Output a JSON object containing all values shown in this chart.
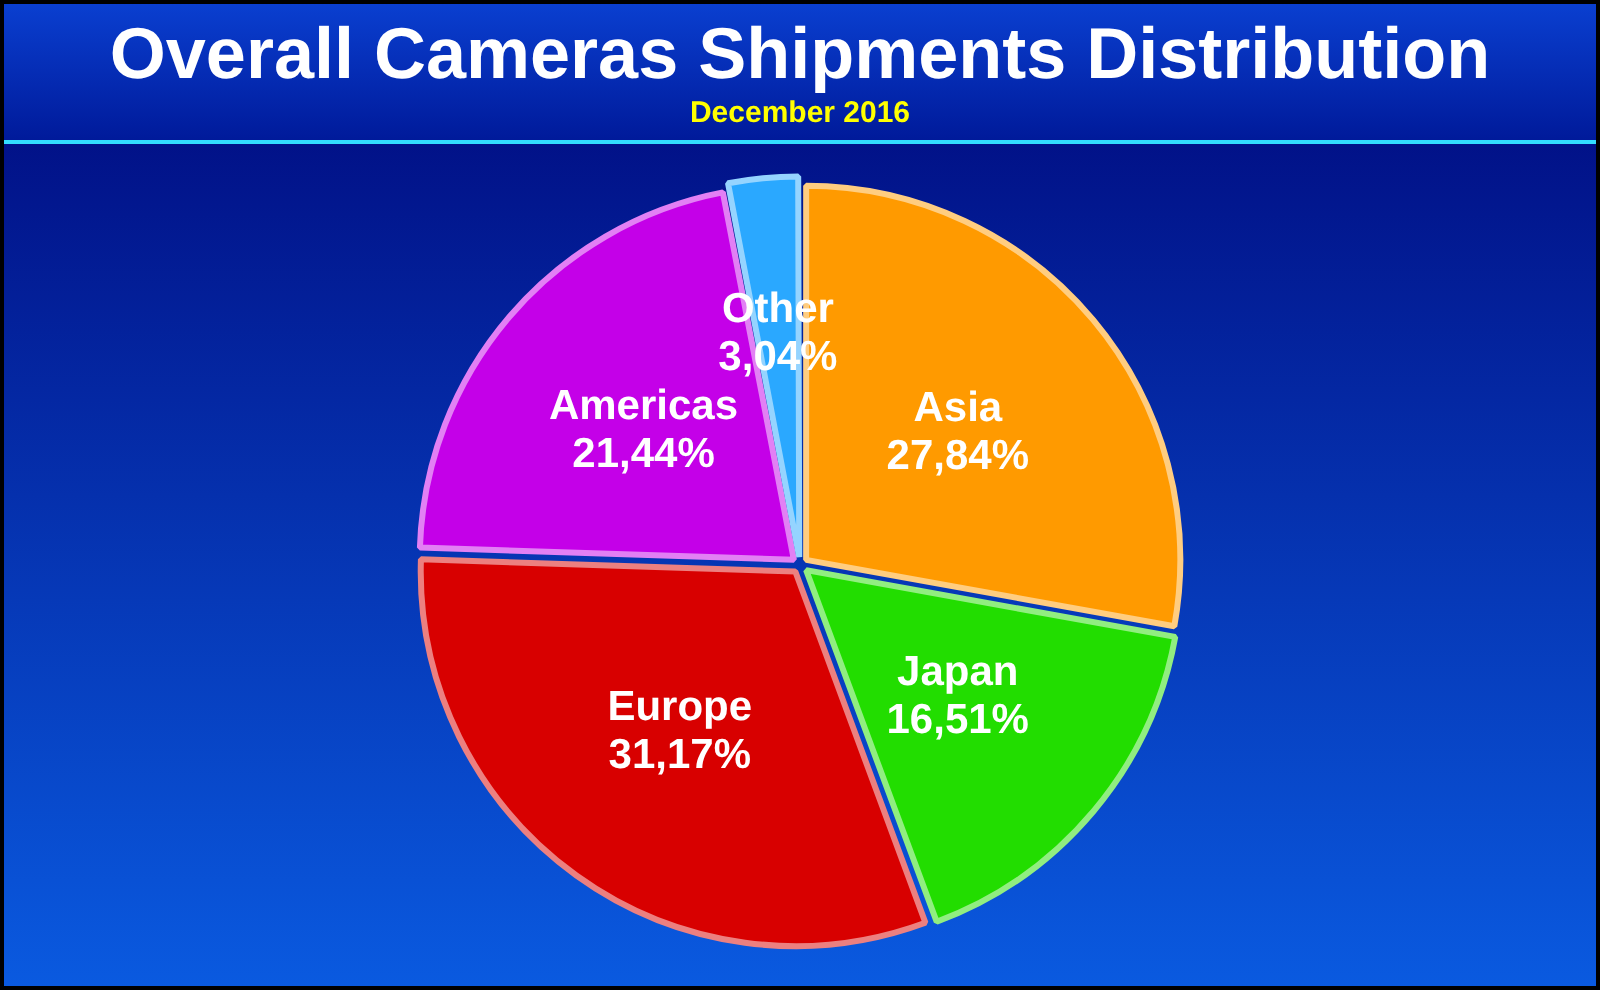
{
  "chart_data": {
    "type": "pie",
    "title": "Overall Cameras Shipments Distribution",
    "subtitle": "December 2016",
    "categories": [
      "Asia",
      "Japan",
      "Europe",
      "Americas",
      "Other"
    ],
    "values": [
      27.84,
      16.51,
      31.17,
      21.44,
      3.04
    ],
    "value_labels": [
      "27,84%",
      "16,51%",
      "31,17%",
      "21,44%",
      "3,04%"
    ],
    "colors": [
      "#ff9a00",
      "#22dd00",
      "#d80000",
      "#c400e8",
      "#2aa8ff"
    ],
    "legend": false
  }
}
